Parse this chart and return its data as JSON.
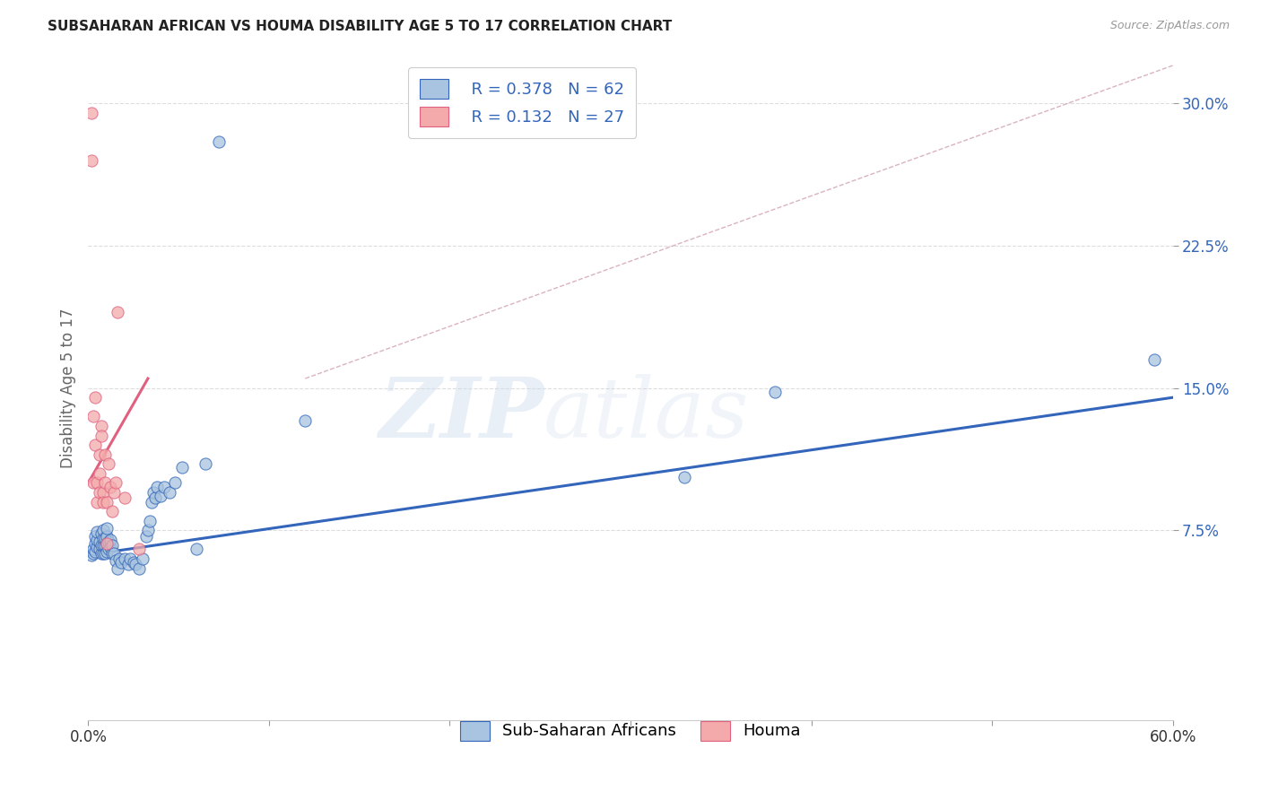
{
  "title": "SUBSAHARAN AFRICAN VS HOUMA DISABILITY AGE 5 TO 17 CORRELATION CHART",
  "source": "Source: ZipAtlas.com",
  "ylabel": "Disability Age 5 to 17",
  "xlim": [
    0.0,
    0.6
  ],
  "ylim": [
    -0.025,
    0.325
  ],
  "yticks": [
    0.075,
    0.15,
    0.225,
    0.3
  ],
  "ytick_labels": [
    "7.5%",
    "15.0%",
    "22.5%",
    "30.0%"
  ],
  "xticks": [
    0.0,
    0.1,
    0.2,
    0.3,
    0.4,
    0.5,
    0.6
  ],
  "xtick_labels": [
    "0.0%",
    "",
    "",
    "",
    "",
    "",
    "60.0%"
  ],
  "legend_label1": "Sub-Saharan Africans",
  "legend_label2": "Houma",
  "color_blue": "#A8C4E0",
  "color_pink": "#F4AAAA",
  "color_blue_line": "#3366BB",
  "color_pink_line": "#E06080",
  "color_dashed": "#D0A0B0",
  "blue_scatter_x": [
    0.002,
    0.003,
    0.003,
    0.004,
    0.004,
    0.004,
    0.005,
    0.005,
    0.005,
    0.006,
    0.006,
    0.007,
    0.007,
    0.007,
    0.008,
    0.008,
    0.008,
    0.008,
    0.009,
    0.009,
    0.009,
    0.01,
    0.01,
    0.01,
    0.01,
    0.011,
    0.011,
    0.012,
    0.012,
    0.013,
    0.013,
    0.014,
    0.015,
    0.016,
    0.017,
    0.018,
    0.02,
    0.022,
    0.023,
    0.025,
    0.026,
    0.028,
    0.03,
    0.032,
    0.033,
    0.034,
    0.035,
    0.036,
    0.037,
    0.038,
    0.04,
    0.042,
    0.045,
    0.048,
    0.052,
    0.06,
    0.065,
    0.072,
    0.12,
    0.33,
    0.38,
    0.59
  ],
  "blue_scatter_y": [
    0.062,
    0.063,
    0.065,
    0.064,
    0.068,
    0.072,
    0.066,
    0.07,
    0.074,
    0.065,
    0.069,
    0.063,
    0.067,
    0.073,
    0.063,
    0.067,
    0.071,
    0.075,
    0.063,
    0.067,
    0.071,
    0.064,
    0.068,
    0.072,
    0.076,
    0.065,
    0.069,
    0.066,
    0.07,
    0.063,
    0.067,
    0.063,
    0.059,
    0.055,
    0.06,
    0.058,
    0.06,
    0.057,
    0.06,
    0.058,
    0.057,
    0.055,
    0.06,
    0.072,
    0.075,
    0.08,
    0.09,
    0.095,
    0.092,
    0.098,
    0.093,
    0.098,
    0.095,
    0.1,
    0.108,
    0.065,
    0.11,
    0.28,
    0.133,
    0.103,
    0.148,
    0.165
  ],
  "pink_scatter_x": [
    0.002,
    0.002,
    0.003,
    0.003,
    0.004,
    0.004,
    0.005,
    0.005,
    0.006,
    0.006,
    0.006,
    0.007,
    0.007,
    0.008,
    0.008,
    0.009,
    0.009,
    0.01,
    0.01,
    0.011,
    0.012,
    0.013,
    0.014,
    0.015,
    0.016,
    0.02,
    0.028
  ],
  "pink_scatter_y": [
    0.295,
    0.27,
    0.135,
    0.1,
    0.145,
    0.12,
    0.1,
    0.09,
    0.115,
    0.105,
    0.095,
    0.13,
    0.125,
    0.095,
    0.09,
    0.115,
    0.1,
    0.09,
    0.068,
    0.11,
    0.098,
    0.085,
    0.095,
    0.1,
    0.19,
    0.092,
    0.065
  ],
  "blue_line_x": [
    0.0,
    0.6
  ],
  "blue_line_y": [
    0.062,
    0.145
  ],
  "pink_line_x": [
    0.0,
    0.033
  ],
  "pink_line_y": [
    0.1,
    0.155
  ],
  "dashed_line_x": [
    0.12,
    0.6
  ],
  "dashed_line_y": [
    0.155,
    0.32
  ],
  "watermark_zip": "ZIP",
  "watermark_atlas": "atlas",
  "background_color": "#FFFFFF",
  "grid_color": "#DDDDDD",
  "title_fontsize": 11,
  "source_fontsize": 9
}
